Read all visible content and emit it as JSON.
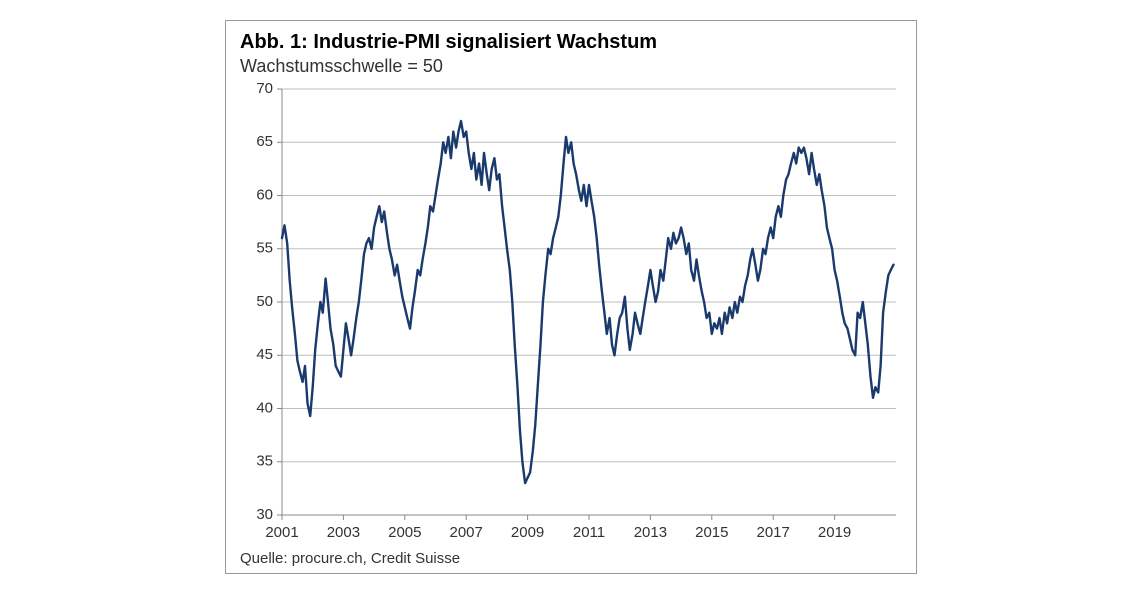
{
  "chart": {
    "type": "line",
    "title": "Abb. 1: Industrie-PMI signalisiert Wachstum",
    "subtitle": "Wachstumsschwelle = 50",
    "source": "Quelle: procure.ch, Credit Suisse",
    "background_color": "#ffffff",
    "grid_color": "#bfbfbf",
    "axis_color": "#888888",
    "line_color": "#1a3a6e",
    "line_width": 2.4,
    "title_fontsize": 20,
    "subtitle_fontsize": 18,
    "tick_fontsize": 15,
    "ylim": [
      30,
      70
    ],
    "yticks": [
      30,
      35,
      40,
      45,
      50,
      55,
      60,
      65,
      70
    ],
    "xlim": [
      2001,
      2021
    ],
    "xticks": [
      2001,
      2003,
      2005,
      2007,
      2009,
      2011,
      2013,
      2015,
      2017,
      2019
    ],
    "series": [
      {
        "x": 2001.0,
        "y": 56.0
      },
      {
        "x": 2001.08,
        "y": 57.2
      },
      {
        "x": 2001.17,
        "y": 55.5
      },
      {
        "x": 2001.25,
        "y": 52.0
      },
      {
        "x": 2001.33,
        "y": 49.5
      },
      {
        "x": 2001.42,
        "y": 47.0
      },
      {
        "x": 2001.5,
        "y": 44.5
      },
      {
        "x": 2001.58,
        "y": 43.5
      },
      {
        "x": 2001.67,
        "y": 42.5
      },
      {
        "x": 2001.75,
        "y": 44.0
      },
      {
        "x": 2001.83,
        "y": 40.5
      },
      {
        "x": 2001.92,
        "y": 39.3
      },
      {
        "x": 2002.0,
        "y": 42.0
      },
      {
        "x": 2002.08,
        "y": 45.5
      },
      {
        "x": 2002.17,
        "y": 48.0
      },
      {
        "x": 2002.25,
        "y": 50.0
      },
      {
        "x": 2002.33,
        "y": 49.0
      },
      {
        "x": 2002.42,
        "y": 52.2
      },
      {
        "x": 2002.5,
        "y": 50.0
      },
      {
        "x": 2002.58,
        "y": 47.5
      },
      {
        "x": 2002.67,
        "y": 46.0
      },
      {
        "x": 2002.75,
        "y": 44.0
      },
      {
        "x": 2002.83,
        "y": 43.5
      },
      {
        "x": 2002.92,
        "y": 43.0
      },
      {
        "x": 2003.0,
        "y": 45.5
      },
      {
        "x": 2003.08,
        "y": 48.0
      },
      {
        "x": 2003.17,
        "y": 46.5
      },
      {
        "x": 2003.25,
        "y": 45.0
      },
      {
        "x": 2003.33,
        "y": 46.5
      },
      {
        "x": 2003.42,
        "y": 48.5
      },
      {
        "x": 2003.5,
        "y": 50.0
      },
      {
        "x": 2003.58,
        "y": 52.0
      },
      {
        "x": 2003.67,
        "y": 54.5
      },
      {
        "x": 2003.75,
        "y": 55.5
      },
      {
        "x": 2003.83,
        "y": 56.0
      },
      {
        "x": 2003.92,
        "y": 55.0
      },
      {
        "x": 2004.0,
        "y": 57.0
      },
      {
        "x": 2004.08,
        "y": 58.0
      },
      {
        "x": 2004.17,
        "y": 59.0
      },
      {
        "x": 2004.25,
        "y": 57.5
      },
      {
        "x": 2004.33,
        "y": 58.5
      },
      {
        "x": 2004.42,
        "y": 56.5
      },
      {
        "x": 2004.5,
        "y": 55.0
      },
      {
        "x": 2004.58,
        "y": 54.0
      },
      {
        "x": 2004.67,
        "y": 52.5
      },
      {
        "x": 2004.75,
        "y": 53.5
      },
      {
        "x": 2004.83,
        "y": 52.0
      },
      {
        "x": 2004.92,
        "y": 50.5
      },
      {
        "x": 2005.0,
        "y": 49.5
      },
      {
        "x": 2005.08,
        "y": 48.5
      },
      {
        "x": 2005.17,
        "y": 47.5
      },
      {
        "x": 2005.25,
        "y": 49.5
      },
      {
        "x": 2005.33,
        "y": 51.0
      },
      {
        "x": 2005.42,
        "y": 53.0
      },
      {
        "x": 2005.5,
        "y": 52.5
      },
      {
        "x": 2005.58,
        "y": 54.0
      },
      {
        "x": 2005.67,
        "y": 55.5
      },
      {
        "x": 2005.75,
        "y": 57.0
      },
      {
        "x": 2005.83,
        "y": 59.0
      },
      {
        "x": 2005.92,
        "y": 58.5
      },
      {
        "x": 2006.0,
        "y": 60.0
      },
      {
        "x": 2006.08,
        "y": 61.5
      },
      {
        "x": 2006.17,
        "y": 63.0
      },
      {
        "x": 2006.25,
        "y": 65.0
      },
      {
        "x": 2006.33,
        "y": 64.0
      },
      {
        "x": 2006.42,
        "y": 65.5
      },
      {
        "x": 2006.5,
        "y": 63.5
      },
      {
        "x": 2006.58,
        "y": 66.0
      },
      {
        "x": 2006.67,
        "y": 64.5
      },
      {
        "x": 2006.75,
        "y": 66.0
      },
      {
        "x": 2006.83,
        "y": 67.0
      },
      {
        "x": 2006.92,
        "y": 65.5
      },
      {
        "x": 2007.0,
        "y": 66.0
      },
      {
        "x": 2007.08,
        "y": 64.0
      },
      {
        "x": 2007.17,
        "y": 62.5
      },
      {
        "x": 2007.25,
        "y": 64.0
      },
      {
        "x": 2007.33,
        "y": 61.5
      },
      {
        "x": 2007.42,
        "y": 63.0
      },
      {
        "x": 2007.5,
        "y": 61.0
      },
      {
        "x": 2007.58,
        "y": 64.0
      },
      {
        "x": 2007.67,
        "y": 62.0
      },
      {
        "x": 2007.75,
        "y": 60.5
      },
      {
        "x": 2007.83,
        "y": 62.5
      },
      {
        "x": 2007.92,
        "y": 63.5
      },
      {
        "x": 2008.0,
        "y": 61.5
      },
      {
        "x": 2008.08,
        "y": 62.0
      },
      {
        "x": 2008.17,
        "y": 59.0
      },
      {
        "x": 2008.25,
        "y": 57.0
      },
      {
        "x": 2008.33,
        "y": 55.0
      },
      {
        "x": 2008.42,
        "y": 53.0
      },
      {
        "x": 2008.5,
        "y": 50.0
      },
      {
        "x": 2008.58,
        "y": 46.0
      },
      {
        "x": 2008.67,
        "y": 42.0
      },
      {
        "x": 2008.75,
        "y": 38.0
      },
      {
        "x": 2008.83,
        "y": 35.0
      },
      {
        "x": 2008.92,
        "y": 33.0
      },
      {
        "x": 2009.0,
        "y": 33.5
      },
      {
        "x": 2009.08,
        "y": 34.0
      },
      {
        "x": 2009.17,
        "y": 36.0
      },
      {
        "x": 2009.25,
        "y": 38.5
      },
      {
        "x": 2009.33,
        "y": 42.0
      },
      {
        "x": 2009.42,
        "y": 46.0
      },
      {
        "x": 2009.5,
        "y": 50.0
      },
      {
        "x": 2009.58,
        "y": 52.5
      },
      {
        "x": 2009.67,
        "y": 55.0
      },
      {
        "x": 2009.75,
        "y": 54.5
      },
      {
        "x": 2009.83,
        "y": 56.0
      },
      {
        "x": 2009.92,
        "y": 57.0
      },
      {
        "x": 2010.0,
        "y": 58.0
      },
      {
        "x": 2010.08,
        "y": 60.0
      },
      {
        "x": 2010.17,
        "y": 63.0
      },
      {
        "x": 2010.25,
        "y": 65.5
      },
      {
        "x": 2010.33,
        "y": 64.0
      },
      {
        "x": 2010.42,
        "y": 65.0
      },
      {
        "x": 2010.5,
        "y": 63.0
      },
      {
        "x": 2010.58,
        "y": 62.0
      },
      {
        "x": 2010.67,
        "y": 60.5
      },
      {
        "x": 2010.75,
        "y": 59.5
      },
      {
        "x": 2010.83,
        "y": 61.0
      },
      {
        "x": 2010.92,
        "y": 59.0
      },
      {
        "x": 2011.0,
        "y": 61.0
      },
      {
        "x": 2011.08,
        "y": 59.5
      },
      {
        "x": 2011.17,
        "y": 58.0
      },
      {
        "x": 2011.25,
        "y": 56.0
      },
      {
        "x": 2011.33,
        "y": 53.5
      },
      {
        "x": 2011.42,
        "y": 51.0
      },
      {
        "x": 2011.5,
        "y": 49.0
      },
      {
        "x": 2011.58,
        "y": 47.0
      },
      {
        "x": 2011.67,
        "y": 48.5
      },
      {
        "x": 2011.75,
        "y": 46.0
      },
      {
        "x": 2011.83,
        "y": 45.0
      },
      {
        "x": 2011.92,
        "y": 47.0
      },
      {
        "x": 2012.0,
        "y": 48.5
      },
      {
        "x": 2012.08,
        "y": 49.0
      },
      {
        "x": 2012.17,
        "y": 50.5
      },
      {
        "x": 2012.25,
        "y": 47.5
      },
      {
        "x": 2012.33,
        "y": 45.5
      },
      {
        "x": 2012.42,
        "y": 47.0
      },
      {
        "x": 2012.5,
        "y": 49.0
      },
      {
        "x": 2012.58,
        "y": 48.0
      },
      {
        "x": 2012.67,
        "y": 47.0
      },
      {
        "x": 2012.75,
        "y": 48.5
      },
      {
        "x": 2012.83,
        "y": 50.0
      },
      {
        "x": 2012.92,
        "y": 51.5
      },
      {
        "x": 2013.0,
        "y": 53.0
      },
      {
        "x": 2013.08,
        "y": 51.5
      },
      {
        "x": 2013.17,
        "y": 50.0
      },
      {
        "x": 2013.25,
        "y": 51.0
      },
      {
        "x": 2013.33,
        "y": 53.0
      },
      {
        "x": 2013.42,
        "y": 52.0
      },
      {
        "x": 2013.5,
        "y": 54.0
      },
      {
        "x": 2013.58,
        "y": 56.0
      },
      {
        "x": 2013.67,
        "y": 55.0
      },
      {
        "x": 2013.75,
        "y": 56.5
      },
      {
        "x": 2013.83,
        "y": 55.5
      },
      {
        "x": 2013.92,
        "y": 56.0
      },
      {
        "x": 2014.0,
        "y": 57.0
      },
      {
        "x": 2014.08,
        "y": 56.0
      },
      {
        "x": 2014.17,
        "y": 54.5
      },
      {
        "x": 2014.25,
        "y": 55.5
      },
      {
        "x": 2014.33,
        "y": 53.0
      },
      {
        "x": 2014.42,
        "y": 52.0
      },
      {
        "x": 2014.5,
        "y": 54.0
      },
      {
        "x": 2014.58,
        "y": 52.5
      },
      {
        "x": 2014.67,
        "y": 51.0
      },
      {
        "x": 2014.75,
        "y": 50.0
      },
      {
        "x": 2014.83,
        "y": 48.5
      },
      {
        "x": 2014.92,
        "y": 49.0
      },
      {
        "x": 2015.0,
        "y": 47.0
      },
      {
        "x": 2015.08,
        "y": 48.0
      },
      {
        "x": 2015.17,
        "y": 47.5
      },
      {
        "x": 2015.25,
        "y": 48.5
      },
      {
        "x": 2015.33,
        "y": 47.0
      },
      {
        "x": 2015.42,
        "y": 49.0
      },
      {
        "x": 2015.5,
        "y": 48.0
      },
      {
        "x": 2015.58,
        "y": 49.5
      },
      {
        "x": 2015.67,
        "y": 48.5
      },
      {
        "x": 2015.75,
        "y": 50.0
      },
      {
        "x": 2015.83,
        "y": 49.0
      },
      {
        "x": 2015.92,
        "y": 50.5
      },
      {
        "x": 2016.0,
        "y": 50.0
      },
      {
        "x": 2016.08,
        "y": 51.5
      },
      {
        "x": 2016.17,
        "y": 52.5
      },
      {
        "x": 2016.25,
        "y": 54.0
      },
      {
        "x": 2016.33,
        "y": 55.0
      },
      {
        "x": 2016.42,
        "y": 53.5
      },
      {
        "x": 2016.5,
        "y": 52.0
      },
      {
        "x": 2016.58,
        "y": 53.0
      },
      {
        "x": 2016.67,
        "y": 55.0
      },
      {
        "x": 2016.75,
        "y": 54.5
      },
      {
        "x": 2016.83,
        "y": 56.0
      },
      {
        "x": 2016.92,
        "y": 57.0
      },
      {
        "x": 2017.0,
        "y": 56.0
      },
      {
        "x": 2017.08,
        "y": 58.0
      },
      {
        "x": 2017.17,
        "y": 59.0
      },
      {
        "x": 2017.25,
        "y": 58.0
      },
      {
        "x": 2017.33,
        "y": 60.0
      },
      {
        "x": 2017.42,
        "y": 61.5
      },
      {
        "x": 2017.5,
        "y": 62.0
      },
      {
        "x": 2017.58,
        "y": 63.0
      },
      {
        "x": 2017.67,
        "y": 64.0
      },
      {
        "x": 2017.75,
        "y": 63.0
      },
      {
        "x": 2017.83,
        "y": 64.5
      },
      {
        "x": 2017.92,
        "y": 64.0
      },
      {
        "x": 2018.0,
        "y": 64.5
      },
      {
        "x": 2018.08,
        "y": 63.5
      },
      {
        "x": 2018.17,
        "y": 62.0
      },
      {
        "x": 2018.25,
        "y": 64.0
      },
      {
        "x": 2018.33,
        "y": 62.5
      },
      {
        "x": 2018.42,
        "y": 61.0
      },
      {
        "x": 2018.5,
        "y": 62.0
      },
      {
        "x": 2018.58,
        "y": 60.5
      },
      {
        "x": 2018.67,
        "y": 59.0
      },
      {
        "x": 2018.75,
        "y": 57.0
      },
      {
        "x": 2018.83,
        "y": 56.0
      },
      {
        "x": 2018.92,
        "y": 55.0
      },
      {
        "x": 2019.0,
        "y": 53.0
      },
      {
        "x": 2019.08,
        "y": 52.0
      },
      {
        "x": 2019.17,
        "y": 50.5
      },
      {
        "x": 2019.25,
        "y": 49.0
      },
      {
        "x": 2019.33,
        "y": 48.0
      },
      {
        "x": 2019.42,
        "y": 47.5
      },
      {
        "x": 2019.5,
        "y": 46.5
      },
      {
        "x": 2019.58,
        "y": 45.5
      },
      {
        "x": 2019.67,
        "y": 45.0
      },
      {
        "x": 2019.75,
        "y": 49.0
      },
      {
        "x": 2019.83,
        "y": 48.5
      },
      {
        "x": 2019.92,
        "y": 50.0
      },
      {
        "x": 2020.0,
        "y": 48.0
      },
      {
        "x": 2020.08,
        "y": 46.0
      },
      {
        "x": 2020.17,
        "y": 43.0
      },
      {
        "x": 2020.25,
        "y": 41.0
      },
      {
        "x": 2020.33,
        "y": 42.0
      },
      {
        "x": 2020.42,
        "y": 41.5
      },
      {
        "x": 2020.5,
        "y": 44.0
      },
      {
        "x": 2020.58,
        "y": 49.0
      },
      {
        "x": 2020.67,
        "y": 51.0
      },
      {
        "x": 2020.75,
        "y": 52.5
      },
      {
        "x": 2020.83,
        "y": 53.0
      },
      {
        "x": 2020.92,
        "y": 53.5
      }
    ]
  }
}
